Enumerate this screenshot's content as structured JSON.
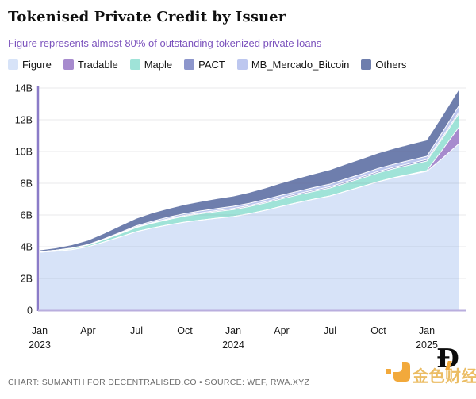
{
  "header": {
    "title": "Tokenised Private Credit by Issuer",
    "subtitle": "Figure represents almost 80% of outstanding tokenized private loans"
  },
  "chart_data": {
    "type": "area",
    "stacked": true,
    "title": "Tokenised Private Credit by Issuer",
    "xlabel": "",
    "ylabel": "",
    "unit": "B",
    "ylim": [
      0,
      14
    ],
    "x_months": [
      "Jan 2023",
      "Feb 2023",
      "Mar 2023",
      "Apr 2023",
      "May 2023",
      "Jun 2023",
      "Jul 2023",
      "Aug 2023",
      "Sep 2023",
      "Oct 2023",
      "Nov 2023",
      "Dec 2023",
      "Jan 2024",
      "Feb 2024",
      "Mar 2024",
      "Apr 2024",
      "May 2024",
      "Jun 2024",
      "Jul 2024",
      "Aug 2024",
      "Sep 2024",
      "Oct 2024",
      "Nov 2024",
      "Dec 2024",
      "Jan 2025",
      "Feb 2025",
      "Mar 2025"
    ],
    "series": [
      {
        "name": "Figure",
        "color": "#d7e3f8",
        "values": [
          3.65,
          3.72,
          3.82,
          4.0,
          4.3,
          4.62,
          4.95,
          5.18,
          5.38,
          5.55,
          5.68,
          5.8,
          5.9,
          6.08,
          6.3,
          6.55,
          6.78,
          7.0,
          7.2,
          7.5,
          7.8,
          8.1,
          8.35,
          8.55,
          8.75,
          9.6,
          10.5
        ]
      },
      {
        "name": "Tradable",
        "color": "#a78bce",
        "values": [
          0,
          0,
          0,
          0,
          0,
          0,
          0,
          0,
          0,
          0,
          0,
          0,
          0,
          0,
          0,
          0,
          0,
          0,
          0,
          0,
          0,
          0.01,
          0.02,
          0.03,
          0.05,
          0.55,
          1.05
        ]
      },
      {
        "name": "Maple",
        "color": "#9fe3d8",
        "values": [
          0.03,
          0.05,
          0.07,
          0.1,
          0.14,
          0.2,
          0.26,
          0.3,
          0.34,
          0.38,
          0.4,
          0.42,
          0.44,
          0.45,
          0.46,
          0.47,
          0.48,
          0.49,
          0.5,
          0.51,
          0.53,
          0.55,
          0.56,
          0.58,
          0.6,
          0.72,
          0.85
        ]
      },
      {
        "name": "PACT",
        "color": "#8d96cc",
        "values": [
          0.01,
          0.01,
          0.02,
          0.02,
          0.03,
          0.03,
          0.04,
          0.04,
          0.05,
          0.05,
          0.06,
          0.06,
          0.07,
          0.07,
          0.07,
          0.08,
          0.08,
          0.08,
          0.08,
          0.09,
          0.09,
          0.09,
          0.09,
          0.1,
          0.1,
          0.1,
          0.1
        ]
      },
      {
        "name": "MB_Mercado_Bitcoin",
        "color": "#bdc7ef",
        "values": [
          0.0,
          0.0,
          0.01,
          0.02,
          0.03,
          0.05,
          0.07,
          0.09,
          0.1,
          0.11,
          0.12,
          0.13,
          0.14,
          0.14,
          0.15,
          0.15,
          0.15,
          0.16,
          0.17,
          0.18,
          0.18,
          0.19,
          0.19,
          0.2,
          0.2,
          0.3,
          0.4
        ]
      },
      {
        "name": "Others",
        "color": "#6e7ead",
        "values": [
          0.08,
          0.12,
          0.18,
          0.25,
          0.32,
          0.4,
          0.45,
          0.5,
          0.52,
          0.55,
          0.57,
          0.6,
          0.62,
          0.66,
          0.7,
          0.75,
          0.8,
          0.84,
          0.88,
          0.91,
          0.93,
          0.95,
          0.97,
          0.99,
          1.0,
          1.0,
          1.0
        ]
      }
    ],
    "x_ticks": [
      {
        "month_index": 0,
        "label": "Jan",
        "year": "2023"
      },
      {
        "month_index": 3,
        "label": "Apr"
      },
      {
        "month_index": 6,
        "label": "Jul"
      },
      {
        "month_index": 9,
        "label": "Oct"
      },
      {
        "month_index": 12,
        "label": "Jan",
        "year": "2024"
      },
      {
        "month_index": 15,
        "label": "Apr"
      },
      {
        "month_index": 18,
        "label": "Jul"
      },
      {
        "month_index": 21,
        "label": "Oct"
      },
      {
        "month_index": 24,
        "label": "Jan",
        "year": "2025"
      }
    ],
    "y_ticks": [
      {
        "value": 0,
        "label": "0"
      },
      {
        "value": 2,
        "label": "2B"
      },
      {
        "value": 4,
        "label": "4B"
      },
      {
        "value": 6,
        "label": "6B"
      },
      {
        "value": 8,
        "label": "8B"
      },
      {
        "value": 10,
        "label": "10B"
      },
      {
        "value": 12,
        "label": "12B"
      },
      {
        "value": 14,
        "label": "14B"
      }
    ],
    "legend_position": "top",
    "grid": "horizontal",
    "accent_colors": {
      "axis_left": "#8b7cc8",
      "axis_bottom": "#b9aede",
      "subtitle": "#7c53bd"
    }
  },
  "footer": {
    "credit": "CHART: SUMANTH FOR DECENTRALISED.CO • SOURCE: WEF, RWA.XYZ"
  },
  "watermark": {
    "text": "金色财经",
    "logo_letter": "Ð"
  }
}
